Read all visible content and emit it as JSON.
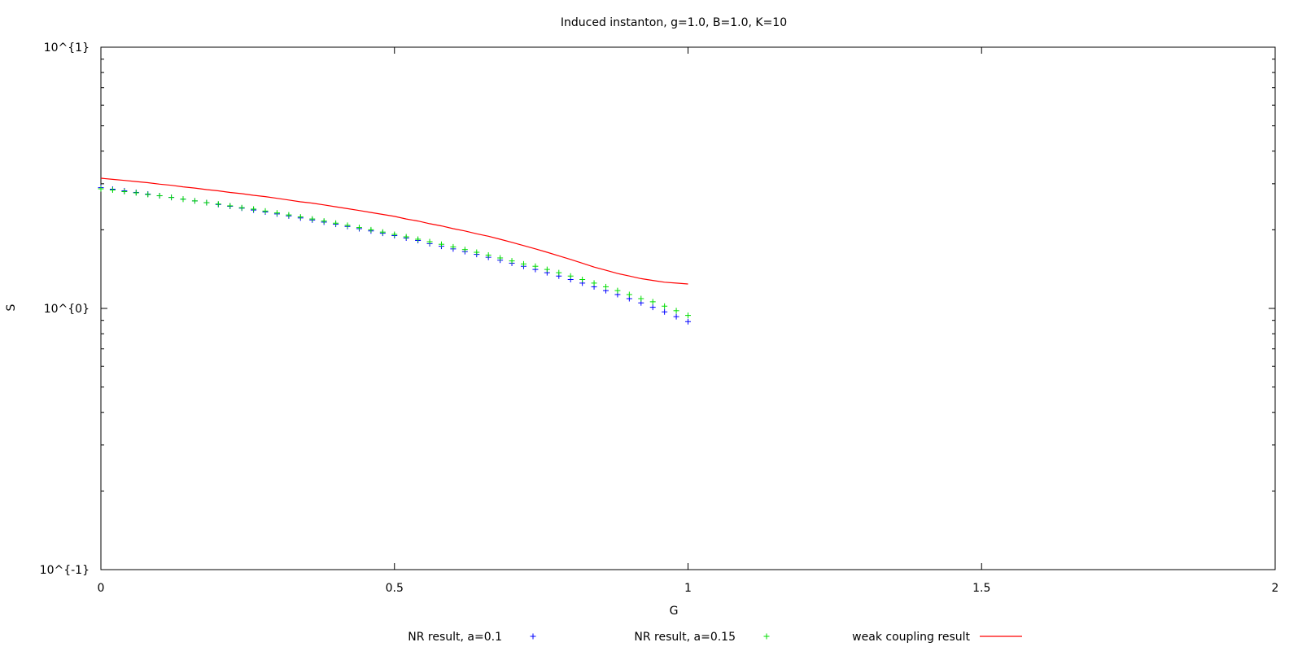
{
  "chart_data": {
    "type": "scatter",
    "title": "Induced instanton, g=1.0, B=1.0, K=10",
    "xlabel": "G",
    "ylabel": "S",
    "xlim": [
      0,
      2
    ],
    "ylim": [
      0.1,
      10
    ],
    "yscale": "log",
    "grid": false,
    "legend_position": "bottom",
    "x_ticks": [
      {
        "value": 0,
        "label": "0"
      },
      {
        "value": 0.5,
        "label": "0.5"
      },
      {
        "value": 1,
        "label": "1"
      },
      {
        "value": 1.5,
        "label": "1.5"
      },
      {
        "value": 2,
        "label": "2"
      }
    ],
    "y_ticks": [
      {
        "value": 0.1,
        "label": "10^{-1}"
      },
      {
        "value": 1,
        "label": "10^{0}"
      },
      {
        "value": 10,
        "label": "10^{1}"
      }
    ],
    "x": [
      0,
      0.02,
      0.04,
      0.06,
      0.08,
      0.1,
      0.12,
      0.14,
      0.16,
      0.18,
      0.2,
      0.22,
      0.24,
      0.26,
      0.28,
      0.3,
      0.32,
      0.34,
      0.36,
      0.38,
      0.4,
      0.42,
      0.44,
      0.46,
      0.48,
      0.5,
      0.52,
      0.54,
      0.56,
      0.58,
      0.6,
      0.62,
      0.64,
      0.66,
      0.68,
      0.7,
      0.72,
      0.74,
      0.76,
      0.78,
      0.8,
      0.82,
      0.84,
      0.86,
      0.88,
      0.9,
      0.92,
      0.94,
      0.96,
      0.98,
      1.0
    ],
    "series": [
      {
        "name": "NR result, a=0.1",
        "style": "points",
        "marker": "+",
        "color": "#0000ff",
        "values": [
          2.9,
          2.86,
          2.82,
          2.78,
          2.74,
          2.7,
          2.66,
          2.62,
          2.58,
          2.54,
          2.5,
          2.46,
          2.42,
          2.38,
          2.34,
          2.3,
          2.26,
          2.22,
          2.18,
          2.14,
          2.1,
          2.06,
          2.02,
          1.98,
          1.94,
          1.9,
          1.86,
          1.82,
          1.77,
          1.73,
          1.69,
          1.65,
          1.61,
          1.57,
          1.53,
          1.49,
          1.45,
          1.41,
          1.37,
          1.33,
          1.29,
          1.25,
          1.21,
          1.17,
          1.13,
          1.09,
          1.05,
          1.01,
          0.97,
          0.93,
          0.89
        ]
      },
      {
        "name": "NR result, a=0.15",
        "style": "points",
        "marker": "+",
        "color": "#00dd00",
        "values": [
          2.87,
          2.84,
          2.8,
          2.77,
          2.73,
          2.7,
          2.66,
          2.62,
          2.58,
          2.54,
          2.51,
          2.47,
          2.43,
          2.4,
          2.36,
          2.32,
          2.28,
          2.24,
          2.2,
          2.16,
          2.12,
          2.08,
          2.04,
          2.0,
          1.96,
          1.92,
          1.88,
          1.84,
          1.8,
          1.76,
          1.72,
          1.68,
          1.64,
          1.6,
          1.56,
          1.52,
          1.48,
          1.45,
          1.41,
          1.37,
          1.33,
          1.29,
          1.25,
          1.21,
          1.17,
          1.13,
          1.09,
          1.06,
          1.02,
          0.98,
          0.94
        ]
      },
      {
        "name": "weak coupling result",
        "style": "line",
        "color": "#ff0000",
        "values": [
          3.15,
          3.12,
          3.09,
          3.06,
          3.03,
          2.99,
          2.96,
          2.92,
          2.89,
          2.85,
          2.82,
          2.78,
          2.75,
          2.71,
          2.68,
          2.64,
          2.6,
          2.56,
          2.53,
          2.49,
          2.45,
          2.41,
          2.37,
          2.33,
          2.29,
          2.25,
          2.2,
          2.16,
          2.11,
          2.07,
          2.02,
          1.98,
          1.93,
          1.89,
          1.84,
          1.79,
          1.74,
          1.69,
          1.64,
          1.59,
          1.54,
          1.49,
          1.44,
          1.4,
          1.36,
          1.33,
          1.3,
          1.28,
          1.26,
          1.25,
          1.24
        ]
      }
    ]
  }
}
